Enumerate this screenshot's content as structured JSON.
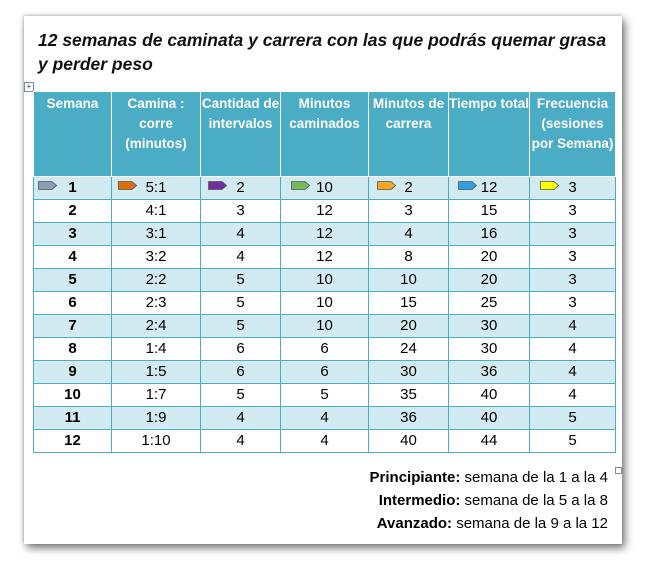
{
  "title": "12 semanas de caminata y carrera  con las que podrás quemar grasa y perder peso",
  "table": {
    "headers": [
      "Semana",
      "Camina : corre (minutos)",
      "Cantidad de intervalos",
      "Minutos caminados",
      "Minutos de carrera",
      "Tiempo total",
      "Frecuencia (sesiones por Semana)"
    ],
    "rows": [
      [
        "1",
        "5:1",
        "2",
        "10",
        "2",
        "12",
        "3"
      ],
      [
        "2",
        "4:1",
        "3",
        "12",
        "3",
        "15",
        "3"
      ],
      [
        "3",
        "3:1",
        "4",
        "12",
        "4",
        "16",
        "3"
      ],
      [
        "4",
        "3:2",
        "4",
        "12",
        "8",
        "20",
        "3"
      ],
      [
        "5",
        "2:2",
        "5",
        "10",
        "10",
        "20",
        "3"
      ],
      [
        "6",
        "2:3",
        "5",
        "10",
        "15",
        "25",
        "3"
      ],
      [
        "7",
        "2:4",
        "5",
        "10",
        "20",
        "30",
        "4"
      ],
      [
        "8",
        "1:4",
        "6",
        "6",
        "24",
        "30",
        "4"
      ],
      [
        "9",
        "1:5",
        "6",
        "6",
        "30",
        "36",
        "4"
      ],
      [
        "10",
        "1:7",
        "5",
        "5",
        "35",
        "40",
        "4"
      ],
      [
        "11",
        "1:9",
        "4",
        "4",
        "36",
        "40",
        "5"
      ],
      [
        "12",
        "1:10",
        "4",
        "4",
        "40",
        "44",
        "5"
      ]
    ],
    "tag_colors": [
      "#8c9db5",
      "#e36c0a",
      "#7030a0",
      "#76b95a",
      "#f5a623",
      "#2e9fe0",
      "#ffff00"
    ]
  },
  "legend": [
    {
      "level": "Principiante:",
      "range": " semana de la 1 a la 4"
    },
    {
      "level": "Intermedio:",
      "range": " semana de la 5 a la 8"
    },
    {
      "level": "Avanzado:",
      "range": " semana de la 9 a la 12"
    }
  ]
}
